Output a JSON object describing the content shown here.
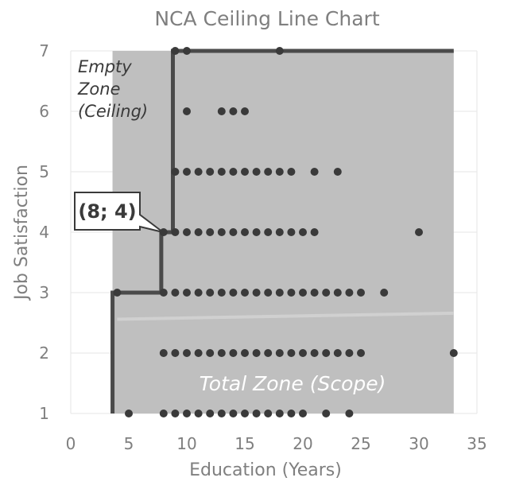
{
  "chart_data": {
    "type": "scatter",
    "title": "NCA Ceiling Line Chart",
    "xlabel": "Education (Years)",
    "ylabel": "Job Satisfaction",
    "xlim": [
      0,
      35
    ],
    "ylim": [
      1,
      7
    ],
    "x_ticks": [
      0,
      5,
      10,
      15,
      20,
      25,
      30,
      35
    ],
    "y_ticks": [
      1,
      2,
      3,
      4,
      5,
      6,
      7
    ],
    "grid": true,
    "colors": {
      "points": "#3a3a3a",
      "scope_fill": "#bfbfbf",
      "ceiling_line": "#4a4a4a",
      "ols_line": "#d0d0d0",
      "grid": "#e6e6e6",
      "text": "#7f7f7f"
    },
    "points": [
      {
        "y": 7,
        "x": [
          9,
          10,
          18
        ]
      },
      {
        "y": 6,
        "x": [
          10,
          13,
          14,
          15
        ]
      },
      {
        "y": 5,
        "x": [
          9,
          10,
          11,
          12,
          13,
          14,
          15,
          16,
          17,
          18,
          19,
          21,
          23
        ]
      },
      {
        "y": 4,
        "x": [
          8,
          9,
          10,
          11,
          12,
          13,
          14,
          15,
          16,
          17,
          18,
          19,
          20,
          21,
          30
        ]
      },
      {
        "y": 3,
        "x": [
          4,
          8,
          9,
          10,
          11,
          12,
          13,
          14,
          15,
          16,
          17,
          18,
          19,
          20,
          21,
          22,
          23,
          24,
          25,
          27
        ]
      },
      {
        "y": 2,
        "x": [
          8,
          9,
          10,
          11,
          12,
          13,
          14,
          15,
          16,
          17,
          18,
          19,
          20,
          21,
          22,
          23,
          24,
          25,
          33
        ]
      },
      {
        "y": 1,
        "x": [
          5,
          8,
          9,
          10,
          11,
          12,
          13,
          14,
          15,
          16,
          17,
          18,
          19,
          20,
          22,
          24
        ]
      }
    ],
    "ceiling_line": [
      [
        3.6,
        1
      ],
      [
        3.6,
        3
      ],
      [
        7.8,
        3
      ],
      [
        7.8,
        4
      ],
      [
        8.8,
        4
      ],
      [
        8.8,
        7
      ],
      [
        33,
        7
      ]
    ],
    "scope": {
      "x": [
        3.6,
        33
      ],
      "y": [
        1,
        7
      ]
    },
    "ols_line": [
      [
        4,
        2.56
      ],
      [
        33,
        2.66
      ]
    ],
    "annotations": {
      "empty_zone": [
        "Empty",
        "Zone",
        "(Ceiling)"
      ],
      "total_zone": "Total Zone (Scope)",
      "callout": "(8; 4)"
    }
  }
}
